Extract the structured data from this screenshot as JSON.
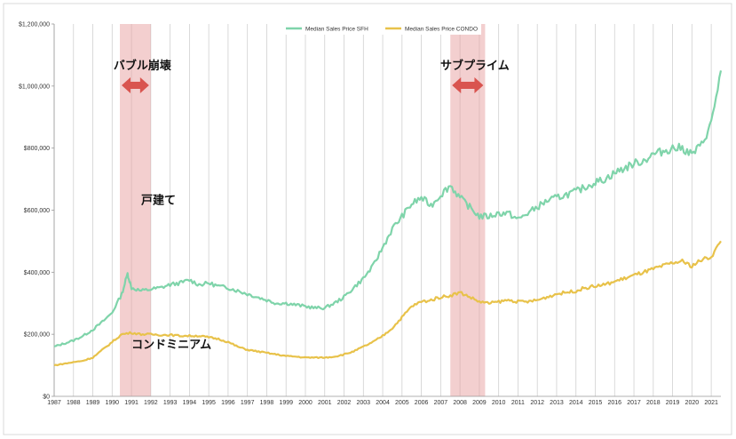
{
  "chart_data": {
    "type": "line",
    "title": "",
    "xlabel": "",
    "ylabel": "",
    "ylim": [
      0,
      1200000
    ],
    "xlim": [
      1987,
      2021.5
    ],
    "y_ticks": [
      "$0",
      "$200,000",
      "$400,000",
      "$600,000",
      "$800,000",
      "$1,000,000",
      "$1,200,000"
    ],
    "x_ticks": [
      "1987",
      "1988",
      "1989",
      "1990",
      "1991",
      "1992",
      "1993",
      "1994",
      "1995",
      "1996",
      "1997",
      "1998",
      "1999",
      "2000",
      "2001",
      "2002",
      "2003",
      "2004",
      "2005",
      "2006",
      "2007",
      "2008",
      "2009",
      "2010",
      "2011",
      "2012",
      "2013",
      "2014",
      "2015",
      "2016",
      "2017",
      "2018",
      "2019",
      "2020",
      "2021"
    ],
    "grid": "vertical",
    "legend_position": "top-center",
    "series": [
      {
        "name": "Median Sales Price SFH",
        "color": "#7fd4aa",
        "x": [
          1987,
          1987.5,
          1988,
          1988.5,
          1989,
          1989.5,
          1990,
          1990.5,
          1990.8,
          1991,
          1991.5,
          1992,
          1992.5,
          1993,
          1993.5,
          1994,
          1994.5,
          1995,
          1995.5,
          1996,
          1996.5,
          1997,
          1997.5,
          1998,
          1998.5,
          1999,
          1999.5,
          2000,
          2000.5,
          2001,
          2001.5,
          2002,
          2002.5,
          2003,
          2003.5,
          2004,
          2004.5,
          2005,
          2005.5,
          2006,
          2006.5,
          2007,
          2007.5,
          2008,
          2008.5,
          2009,
          2009.5,
          2010,
          2010.5,
          2011,
          2011.5,
          2012,
          2012.5,
          2013,
          2013.5,
          2014,
          2014.5,
          2015,
          2015.5,
          2016,
          2016.5,
          2017,
          2017.5,
          2018,
          2018.5,
          2019,
          2019.5,
          2020,
          2020.5,
          2021,
          2021.5
        ],
        "values": [
          160000,
          170000,
          180000,
          195000,
          215000,
          240000,
          270000,
          330000,
          395000,
          350000,
          340000,
          345000,
          350000,
          360000,
          365000,
          375000,
          360000,
          365000,
          355000,
          350000,
          340000,
          330000,
          320000,
          310000,
          300000,
          300000,
          295000,
          290000,
          285000,
          285000,
          300000,
          320000,
          350000,
          380000,
          420000,
          480000,
          540000,
          580000,
          620000,
          640000,
          615000,
          650000,
          680000,
          640000,
          610000,
          580000,
          580000,
          590000,
          590000,
          570000,
          590000,
          610000,
          630000,
          640000,
          650000,
          660000,
          675000,
          690000,
          700000,
          720000,
          735000,
          750000,
          760000,
          780000,
          790000,
          800000,
          800000,
          780000,
          810000,
          880000,
          1050000
        ]
      },
      {
        "name": "Median Sales Price CONDO",
        "color": "#e8c24a",
        "x": [
          1987,
          1987.5,
          1988,
          1988.5,
          1989,
          1989.5,
          1990,
          1990.5,
          1991,
          1991.5,
          1992,
          1992.5,
          1993,
          1993.5,
          1994,
          1994.5,
          1995,
          1995.5,
          1996,
          1996.5,
          1997,
          1997.5,
          1998,
          1998.5,
          1999,
          1999.5,
          2000,
          2000.5,
          2001,
          2001.5,
          2002,
          2002.5,
          2003,
          2003.5,
          2004,
          2004.5,
          2005,
          2005.5,
          2006,
          2006.5,
          2007,
          2007.5,
          2008,
          2008.5,
          2009,
          2009.5,
          2010,
          2010.5,
          2011,
          2011.5,
          2012,
          2012.5,
          2013,
          2013.5,
          2014,
          2014.5,
          2015,
          2015.5,
          2016,
          2016.5,
          2017,
          2017.5,
          2018,
          2018.5,
          2019,
          2019.5,
          2020,
          2020.5,
          2021,
          2021.5
        ],
        "values": [
          100000,
          105000,
          110000,
          115000,
          125000,
          150000,
          175000,
          200000,
          205000,
          200000,
          200000,
          198000,
          198000,
          195000,
          195000,
          195000,
          190000,
          185000,
          175000,
          160000,
          150000,
          145000,
          140000,
          135000,
          130000,
          128000,
          125000,
          125000,
          125000,
          128000,
          135000,
          145000,
          160000,
          175000,
          195000,
          220000,
          255000,
          290000,
          305000,
          310000,
          320000,
          325000,
          335000,
          320000,
          305000,
          300000,
          305000,
          310000,
          305000,
          305000,
          310000,
          320000,
          330000,
          335000,
          340000,
          350000,
          355000,
          360000,
          370000,
          380000,
          390000,
          400000,
          410000,
          420000,
          430000,
          435000,
          420000,
          440000,
          450000,
          500000
        ]
      }
    ],
    "highlights": [
      {
        "start": 1990.4,
        "end": 1992.0,
        "label": "バブル崩壊"
      },
      {
        "start": 2007.5,
        "end": 2009.3,
        "label": "サブプライム"
      }
    ],
    "annotations": [
      {
        "text": "戸建て",
        "x": 1991.5,
        "y": 620000
      },
      {
        "text": "コンドミニアム",
        "x": 1991.0,
        "y": 155000
      }
    ]
  }
}
